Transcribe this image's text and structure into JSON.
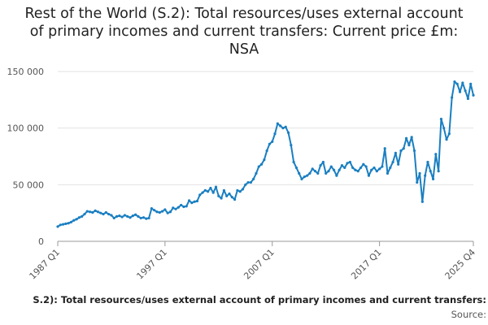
{
  "chart_data": {
    "type": "line",
    "title": "Rest of the World (S.2): Total resources/uses external account of primary incomes and current transfers: Current price £m: NSA",
    "footer": "S.2): Total resources/uses external account of primary incomes and current transfers:",
    "source": "Source:",
    "color": "#1a7fc1",
    "grid": true,
    "ylim": [
      0,
      150000
    ],
    "yticks": [
      0,
      {
        "value": 50000,
        "label": "50 000"
      },
      {
        "value": 100000,
        "label": "100 000"
      },
      {
        "value": 150000,
        "label": "150 000"
      }
    ],
    "categories": [
      "1987 Q1",
      null,
      null,
      null,
      null,
      null,
      null,
      null,
      null,
      null,
      null,
      null,
      null,
      null,
      null,
      null,
      null,
      null,
      null,
      null,
      null,
      null,
      null,
      null,
      null,
      null,
      null,
      null,
      null,
      null,
      null,
      null,
      null,
      null,
      null,
      null,
      null,
      null,
      null,
      null,
      "1997 Q1",
      null,
      null,
      null,
      null,
      null,
      null,
      null,
      null,
      null,
      null,
      null,
      null,
      null,
      null,
      null,
      null,
      null,
      null,
      null,
      null,
      null,
      null,
      null,
      null,
      null,
      null,
      null,
      null,
      null,
      null,
      null,
      null,
      null,
      null,
      null,
      null,
      null,
      null,
      null,
      "2007 Q1",
      null,
      null,
      null,
      null,
      null,
      null,
      null,
      null,
      null,
      null,
      null,
      null,
      null,
      null,
      null,
      null,
      null,
      null,
      null,
      null,
      null,
      null,
      null,
      null,
      null,
      null,
      null,
      null,
      null,
      null,
      null,
      null,
      null,
      null,
      null,
      null,
      null,
      null,
      null,
      "2017 Q1",
      null,
      null,
      null,
      null,
      null,
      null,
      null,
      null,
      null,
      null,
      null,
      null,
      null,
      null,
      null,
      null,
      null,
      null,
      null,
      null,
      null,
      null,
      null,
      null,
      null,
      null,
      null,
      null,
      null,
      null,
      null,
      null,
      null,
      null,
      "2025 Q4"
    ],
    "values": [
      13000,
      14500,
      15000,
      15500,
      16000,
      17000,
      18500,
      19500,
      21000,
      22000,
      24000,
      26500,
      26000,
      25500,
      27000,
      26000,
      25000,
      24000,
      25500,
      24000,
      23000,
      20500,
      22000,
      22500,
      21500,
      23000,
      22000,
      21000,
      22500,
      23500,
      22000,
      20500,
      21000,
      20000,
      20500,
      29000,
      27500,
      26000,
      25500,
      26500,
      28000,
      25000,
      26000,
      29500,
      28500,
      30000,
      32000,
      30500,
      31000,
      36000,
      34000,
      35000,
      35500,
      41000,
      43000,
      45000,
      44000,
      47000,
      43000,
      48000,
      40000,
      38000,
      45000,
      40000,
      42000,
      39000,
      37000,
      45000,
      44000,
      46000,
      50000,
      52000,
      52000,
      55000,
      60000,
      66000,
      68000,
      72000,
      80000,
      86000,
      88000,
      95000,
      104000,
      102000,
      100000,
      101000,
      96000,
      85000,
      70000,
      65000,
      60000,
      55000,
      57000,
      58000,
      60000,
      64000,
      62000,
      60000,
      67000,
      70000,
      60000,
      62000,
      66000,
      63000,
      58000,
      63000,
      67000,
      65000,
      69000,
      70000,
      65000,
      63000,
      62000,
      65000,
      68000,
      66000,
      58000,
      63000,
      65000,
      62000,
      64000,
      66000,
      82000,
      60000,
      65000,
      70000,
      78000,
      68000,
      80000,
      82000,
      91000,
      85000,
      92000,
      80000,
      52000,
      60000,
      35000,
      58000,
      70000,
      62000,
      55000,
      77000,
      62000,
      108000,
      100000,
      90000,
      95000,
      127000,
      141000,
      139000,
      132000,
      140000,
      133000,
      126000,
      139000,
      129000
    ]
  }
}
